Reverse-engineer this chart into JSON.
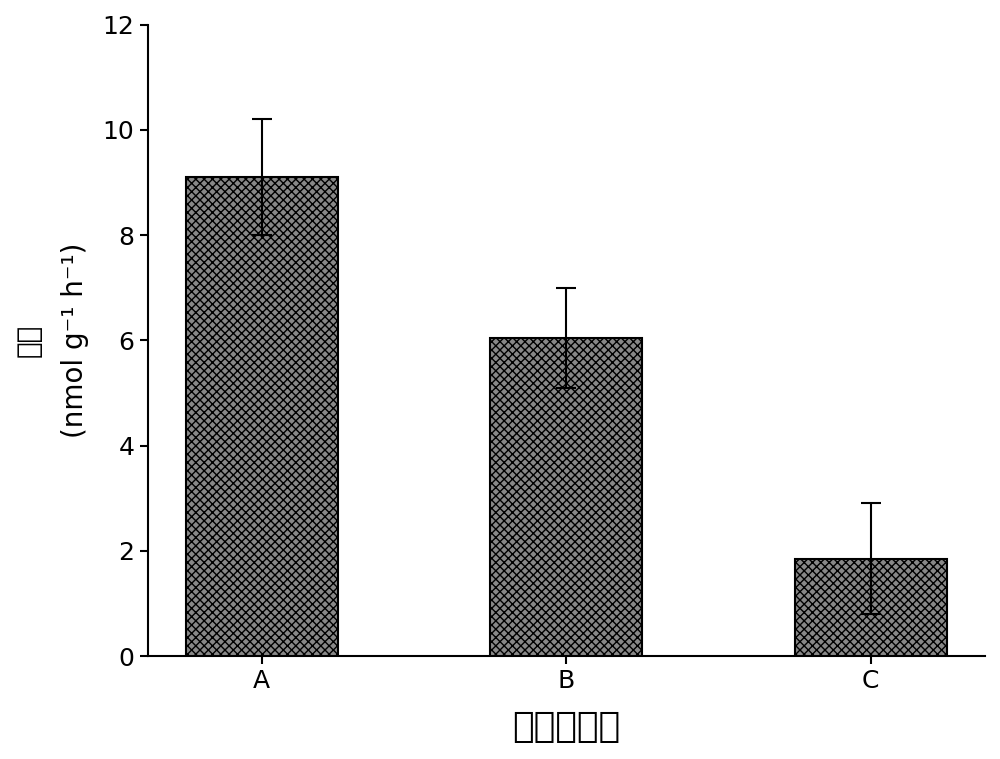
{
  "categories": [
    "A",
    "B",
    "C"
  ],
  "values": [
    9.1,
    6.05,
    1.85
  ],
  "errors": [
    1.1,
    0.95,
    1.05
  ],
  "bar_color": "#888888",
  "edge_color": "#000000",
  "title": "",
  "xlabel": "沉积物样品",
  "ylabel_line1": "活性",
  "ylabel_line2": "(nmol g⁻¹ h⁻¹)",
  "ylim": [
    0,
    12
  ],
  "yticks": [
    0,
    2,
    4,
    6,
    8,
    10,
    12
  ],
  "xlabel_fontsize": 26,
  "ylabel_fontsize": 20,
  "tick_fontsize": 18,
  "bar_width": 0.5,
  "background_color": "#ffffff",
  "figure_width": 10.0,
  "figure_height": 7.59
}
